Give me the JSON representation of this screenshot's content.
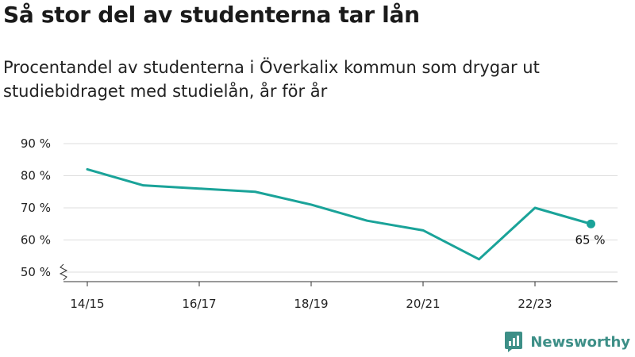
{
  "title": "Så stor del av studenterna tar lån",
  "subtitle": "Procentandel av studenterna i Överkalix kommun som drygar ut studiebidraget med studielån, år för år",
  "brand": {
    "name": "Newsworthy",
    "color": "#3d8f87"
  },
  "colors": {
    "line": "#1aa399",
    "grid": "#dddddd",
    "axis": "#333333"
  },
  "chart_data": {
    "type": "line",
    "x": [
      "14/15",
      "15/16",
      "16/17",
      "17/18",
      "18/19",
      "19/20",
      "20/21",
      "21/22",
      "22/23",
      "23/24"
    ],
    "xticks": [
      "14/15",
      "16/17",
      "18/19",
      "20/21",
      "22/23"
    ],
    "series": [
      {
        "values": [
          82,
          77,
          76,
          75,
          71,
          66,
          63,
          54,
          70,
          65
        ]
      }
    ],
    "ylim": [
      50,
      90
    ],
    "yticks": [
      50,
      60,
      70,
      80,
      90
    ],
    "ytick_suffix": " %",
    "end_label": "65 %",
    "grid": true,
    "axis_break": true
  }
}
